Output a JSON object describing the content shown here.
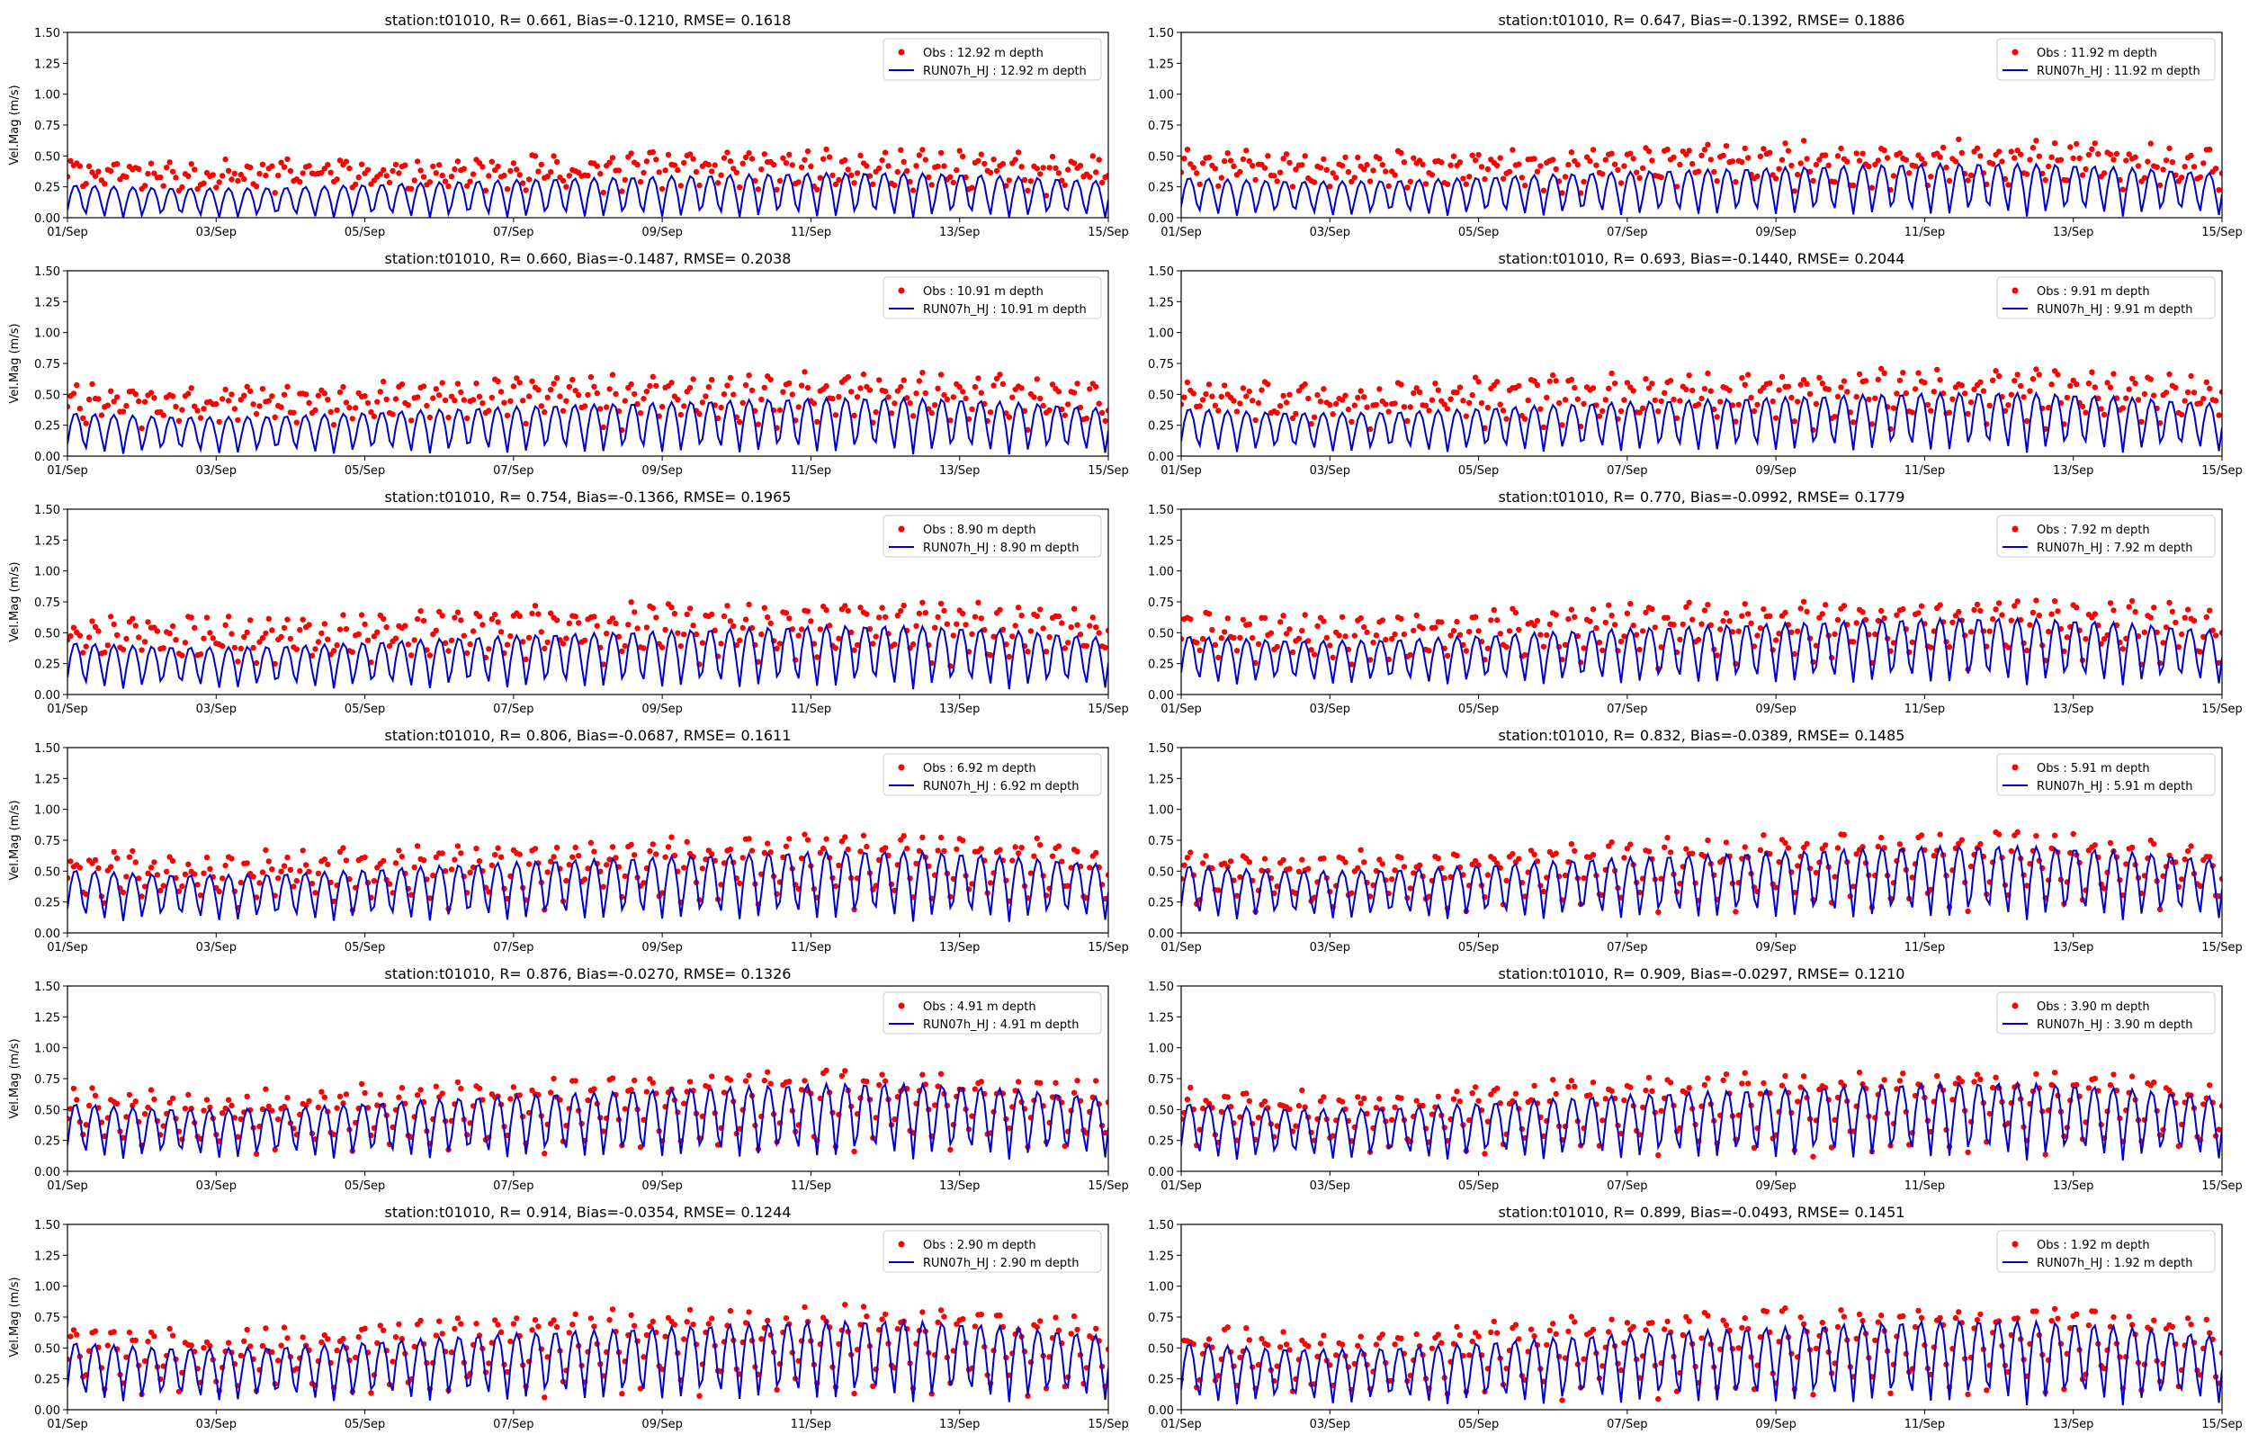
{
  "figure": {
    "colors": {
      "obs": "#ff0000",
      "model": "#0000cd",
      "axes": "#000000"
    },
    "xtick_labels": [
      "01/Sep",
      "03/Sep",
      "05/Sep",
      "07/Sep",
      "09/Sep",
      "11/Sep",
      "13/Sep",
      "15/Sep"
    ],
    "ytick_labels": [
      "0.00",
      "0.25",
      "0.50",
      "0.75",
      "1.00",
      "1.25",
      "1.50"
    ]
  },
  "chart_data": [
    {
      "type": "scatter",
      "title": "station:t01010, R= 0.661, Bias=-0.1210, RMSE= 0.1618",
      "ylabel": "Vel.Mag (m/s)",
      "xlabel": "",
      "x_range": [
        "2023-09-01",
        "2023-09-15"
      ],
      "ylim": [
        0,
        1.5
      ],
      "legend_position": "upper right",
      "grid": false,
      "series": [
        {
          "name": "Obs : 12.92 m depth",
          "kind": "scatter",
          "mean": 0.33,
          "amp": 0.17
        },
        {
          "name": "RUN07h_HJ : 12.92 m depth",
          "kind": "line",
          "mean": 0.2,
          "amp": 0.26
        }
      ]
    },
    {
      "type": "scatter",
      "title": "station:t01010, R= 0.647, Bias=-0.1392, RMSE= 0.1886",
      "ylabel": "",
      "xlabel": "",
      "x_range": [
        "2023-09-01",
        "2023-09-15"
      ],
      "ylim": [
        0,
        1.5
      ],
      "legend_position": "upper right",
      "grid": false,
      "series": [
        {
          "name": "Obs : 11.92 m depth",
          "kind": "scatter",
          "mean": 0.38,
          "amp": 0.22
        },
        {
          "name": "RUN07h_HJ : 11.92 m depth",
          "kind": "line",
          "mean": 0.25,
          "amp": 0.3
        }
      ]
    },
    {
      "type": "scatter",
      "title": "station:t01010, R= 0.660, Bias=-0.1487, RMSE= 0.2038",
      "ylabel": "Vel.Mag (m/s)",
      "xlabel": "",
      "x_range": [
        "2023-09-01",
        "2023-09-15"
      ],
      "ylim": [
        0,
        1.5
      ],
      "legend_position": "upper right",
      "grid": false,
      "series": [
        {
          "name": "Obs : 10.91 m depth",
          "kind": "scatter",
          "mean": 0.42,
          "amp": 0.25
        },
        {
          "name": "RUN07h_HJ : 10.91 m depth",
          "kind": "line",
          "mean": 0.27,
          "amp": 0.32
        }
      ]
    },
    {
      "type": "scatter",
      "title": "station:t01010, R= 0.693, Bias=-0.1440, RMSE= 0.2044",
      "ylabel": "",
      "xlabel": "",
      "x_range": [
        "2023-09-01",
        "2023-09-15"
      ],
      "ylim": [
        0,
        1.5
      ],
      "legend_position": "upper right",
      "grid": false,
      "series": [
        {
          "name": "Obs : 9.91 m depth",
          "kind": "scatter",
          "mean": 0.44,
          "amp": 0.27
        },
        {
          "name": "RUN07h_HJ : 9.91 m depth",
          "kind": "line",
          "mean": 0.3,
          "amp": 0.34
        }
      ]
    },
    {
      "type": "scatter",
      "title": "station:t01010, R= 0.754, Bias=-0.1366, RMSE= 0.1965",
      "ylabel": "Vel.Mag (m/s)",
      "xlabel": "",
      "x_range": [
        "2023-09-01",
        "2023-09-15"
      ],
      "ylim": [
        0,
        1.5
      ],
      "legend_position": "upper right",
      "grid": false,
      "series": [
        {
          "name": "Obs : 8.90 m depth",
          "kind": "scatter",
          "mean": 0.47,
          "amp": 0.3
        },
        {
          "name": "RUN07h_HJ : 8.90 m depth",
          "kind": "line",
          "mean": 0.33,
          "amp": 0.36
        }
      ]
    },
    {
      "type": "scatter",
      "title": "station:t01010, R= 0.770, Bias=-0.0992, RMSE= 0.1779",
      "ylabel": "",
      "xlabel": "",
      "x_range": [
        "2023-09-01",
        "2023-09-15"
      ],
      "ylim": [
        0,
        1.5
      ],
      "legend_position": "upper right",
      "grid": false,
      "series": [
        {
          "name": "Obs : 7.92 m depth",
          "kind": "scatter",
          "mean": 0.48,
          "amp": 0.32
        },
        {
          "name": "RUN07h_HJ : 7.92 m depth",
          "kind": "line",
          "mean": 0.38,
          "amp": 0.38
        }
      ]
    },
    {
      "type": "scatter",
      "title": "station:t01010, R= 0.806, Bias=-0.0687, RMSE= 0.1611",
      "ylabel": "Vel.Mag (m/s)",
      "xlabel": "",
      "x_range": [
        "2023-09-01",
        "2023-09-15"
      ],
      "ylim": [
        0,
        1.5
      ],
      "legend_position": "upper right",
      "grid": false,
      "series": [
        {
          "name": "Obs : 6.92 m depth",
          "kind": "scatter",
          "mean": 0.48,
          "amp": 0.35
        },
        {
          "name": "RUN07h_HJ : 6.92 m depth",
          "kind": "line",
          "mean": 0.41,
          "amp": 0.4
        }
      ]
    },
    {
      "type": "scatter",
      "title": "station:t01010, R= 0.832, Bias=-0.0389, RMSE= 0.1485",
      "ylabel": "",
      "xlabel": "",
      "x_range": [
        "2023-09-01",
        "2023-09-15"
      ],
      "ylim": [
        0,
        1.5
      ],
      "legend_position": "upper right",
      "grid": false,
      "series": [
        {
          "name": "Obs : 5.91 m depth",
          "kind": "scatter",
          "mean": 0.48,
          "amp": 0.38
        },
        {
          "name": "RUN07h_HJ : 5.91 m depth",
          "kind": "line",
          "mean": 0.44,
          "amp": 0.42
        }
      ]
    },
    {
      "type": "scatter",
      "title": "station:t01010, R= 0.876, Bias=-0.0270, RMSE= 0.1326",
      "ylabel": "Vel.Mag (m/s)",
      "xlabel": "",
      "x_range": [
        "2023-09-01",
        "2023-09-15"
      ],
      "ylim": [
        0,
        1.5
      ],
      "legend_position": "upper right",
      "grid": false,
      "series": [
        {
          "name": "Obs : 4.91 m depth",
          "kind": "scatter",
          "mean": 0.47,
          "amp": 0.4
        },
        {
          "name": "RUN07h_HJ : 4.91 m depth",
          "kind": "line",
          "mean": 0.44,
          "amp": 0.43
        }
      ]
    },
    {
      "type": "scatter",
      "title": "station:t01010, R= 0.909, Bias=-0.0297, RMSE= 0.1210",
      "ylabel": "",
      "xlabel": "",
      "x_range": [
        "2023-09-01",
        "2023-09-15"
      ],
      "ylim": [
        0,
        1.5
      ],
      "legend_position": "upper right",
      "grid": false,
      "series": [
        {
          "name": "Obs : 3.90 m depth",
          "kind": "scatter",
          "mean": 0.47,
          "amp": 0.42
        },
        {
          "name": "RUN07h_HJ : 3.90 m depth",
          "kind": "line",
          "mean": 0.44,
          "amp": 0.44
        }
      ]
    },
    {
      "type": "scatter",
      "title": "station:t01010, R= 0.914, Bias=-0.0354, RMSE= 0.1244",
      "ylabel": "Vel.Mag (m/s)",
      "xlabel": "",
      "x_range": [
        "2023-09-01",
        "2023-09-15"
      ],
      "ylim": [
        0,
        1.5
      ],
      "legend_position": "upper right",
      "grid": false,
      "series": [
        {
          "name": "Obs : 2.90 m depth",
          "kind": "scatter",
          "mean": 0.46,
          "amp": 0.45
        },
        {
          "name": "RUN07h_HJ : 2.90 m depth",
          "kind": "line",
          "mean": 0.43,
          "amp": 0.46
        }
      ]
    },
    {
      "type": "scatter",
      "title": "station:t01010, R= 0.899, Bias=-0.0493, RMSE= 0.1451",
      "ylabel": "",
      "xlabel": "",
      "x_range": [
        "2023-09-01",
        "2023-09-15"
      ],
      "ylim": [
        0,
        1.5
      ],
      "legend_position": "upper right",
      "grid": false,
      "series": [
        {
          "name": "Obs : 1.92 m depth",
          "kind": "scatter",
          "mean": 0.46,
          "amp": 0.47
        },
        {
          "name": "RUN07h_HJ : 1.92 m depth",
          "kind": "line",
          "mean": 0.42,
          "amp": 0.48
        }
      ]
    }
  ]
}
